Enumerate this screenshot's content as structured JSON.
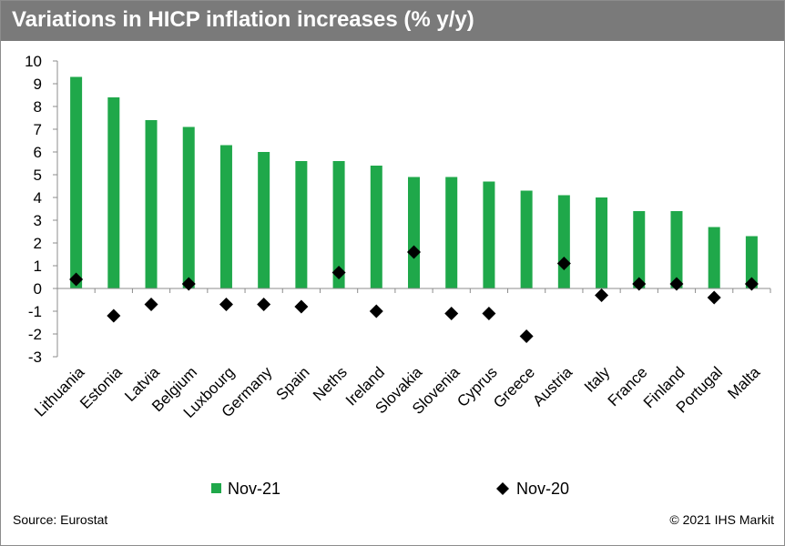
{
  "chart_data": {
    "type": "bar",
    "title": "Variations in HICP inflation increases (% y/y)",
    "categories": [
      "Lithuania",
      "Estonia",
      "Latvia",
      "Belgium",
      "Luxbourg",
      "Germany",
      "Spain",
      "Neths",
      "Ireland",
      "Slovakia",
      "Slovenia",
      "Cyprus",
      "Greece",
      "Austria",
      "Italy",
      "France",
      "Finland",
      "Portugal",
      "Malta"
    ],
    "series": [
      {
        "name": "Nov-21",
        "kind": "bar",
        "color": "#1fa84a",
        "values": [
          9.3,
          8.4,
          7.4,
          7.1,
          6.3,
          6.0,
          5.6,
          5.6,
          5.4,
          4.9,
          4.9,
          4.7,
          4.3,
          4.1,
          4.0,
          3.4,
          3.4,
          2.7,
          2.3
        ]
      },
      {
        "name": "Nov-20",
        "kind": "marker",
        "marker": "diamond",
        "color": "#000000",
        "values": [
          0.4,
          -1.2,
          -0.7,
          0.2,
          -0.7,
          -0.7,
          -0.8,
          0.7,
          -1.0,
          1.6,
          -1.1,
          -1.1,
          -2.1,
          1.1,
          -0.3,
          0.2,
          0.2,
          -0.4,
          0.2
        ]
      }
    ],
    "yticks": [
      10,
      9,
      8,
      7,
      6,
      5,
      4,
      3,
      2,
      1,
      0,
      -1,
      -2,
      -3
    ],
    "ylim": [
      -3,
      10
    ],
    "grid": false,
    "legend_position": "bottom"
  },
  "footer": {
    "source": "Source: Eurostat",
    "copyright": "© 2021 IHS Markit"
  }
}
